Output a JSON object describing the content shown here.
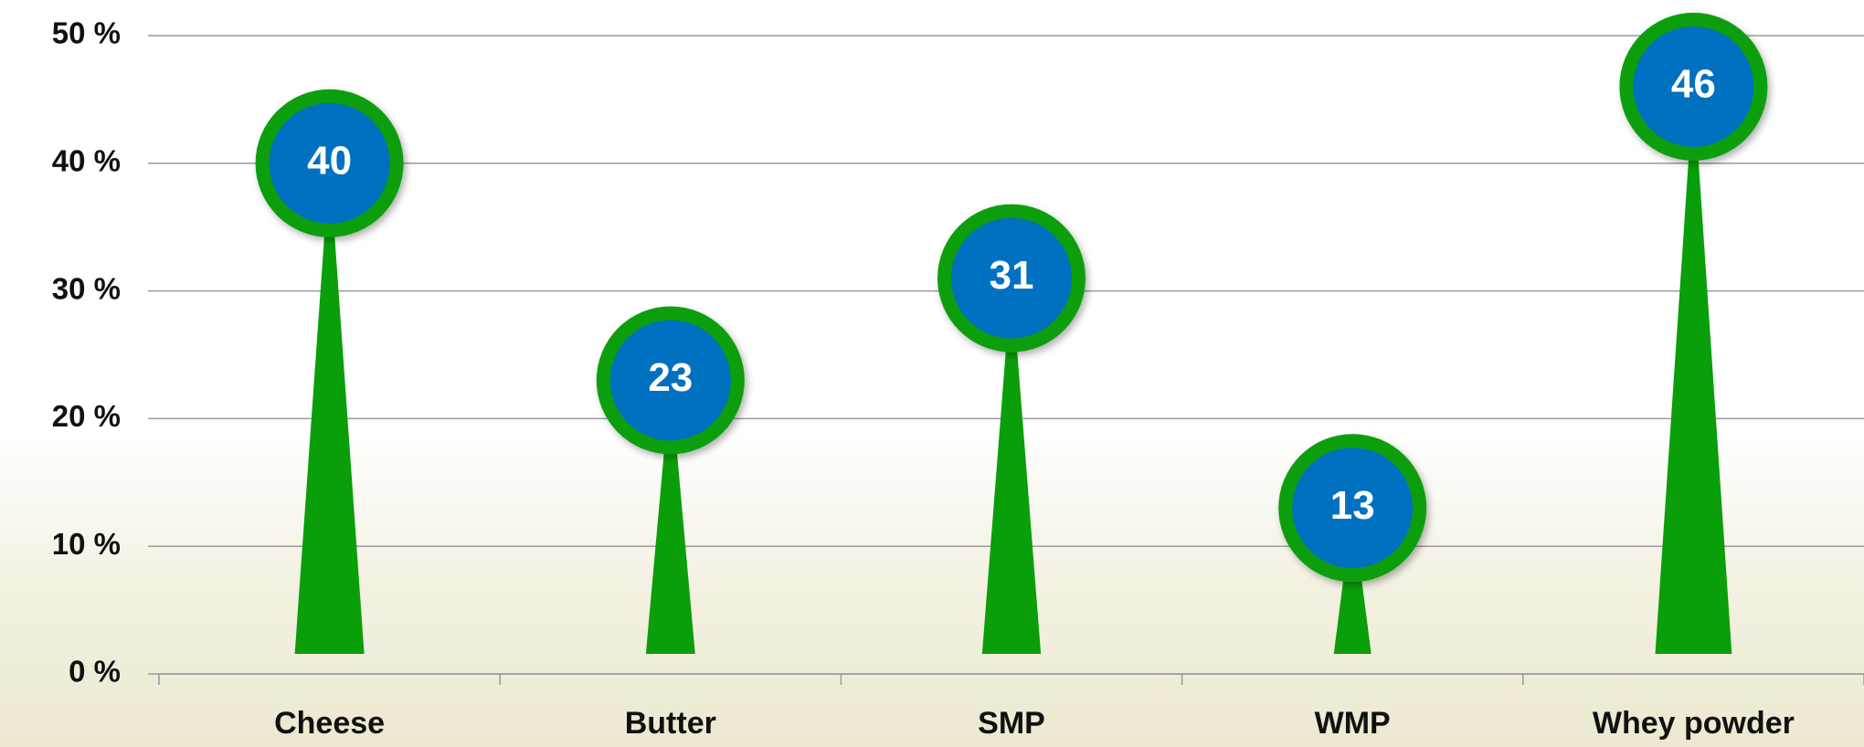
{
  "chart_data": {
    "type": "lollipop",
    "categories": [
      "Cheese",
      "Butter",
      "SMP",
      "WMP",
      "Whey powder"
    ],
    "values": [
      40,
      23,
      31,
      13,
      46
    ],
    "color": "#0a9e0a",
    "head_color": "#0070c0",
    "ylim": [
      0,
      50
    ],
    "yticks": [
      {
        "value": 0,
        "label": "0 %"
      },
      {
        "value": 10,
        "label": "10 %"
      },
      {
        "value": 20,
        "label": "20 %"
      },
      {
        "value": 30,
        "label": "30 %"
      },
      {
        "value": 40,
        "label": "40 %"
      },
      {
        "value": 50,
        "label": "50 %"
      }
    ],
    "grid": true
  }
}
